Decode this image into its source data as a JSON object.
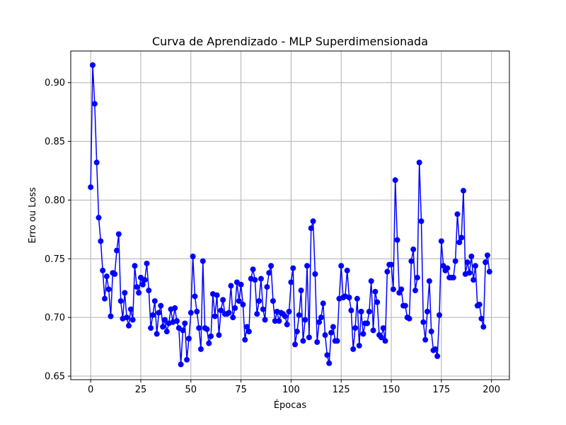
{
  "chart_data": {
    "type": "line",
    "title": "Curva de Aprendizado - MLP Superdimensionada",
    "xlabel": "Épocas",
    "ylabel": "Erro ou Loss",
    "xlim": [
      -9.95,
      208.95
    ],
    "ylim": [
      0.647,
      0.927
    ],
    "xticks": [
      0,
      25,
      50,
      75,
      100,
      125,
      150,
      175,
      200
    ],
    "yticks": [
      0.65,
      0.7,
      0.75,
      0.8,
      0.85,
      0.9
    ],
    "xtick_labels": [
      "0",
      "25",
      "50",
      "75",
      "100",
      "125",
      "150",
      "175",
      "200"
    ],
    "ytick_labels": [
      "0.65",
      "0.70",
      "0.75",
      "0.80",
      "0.85",
      "0.90"
    ],
    "grid": true,
    "series": [
      {
        "color": "#0000ff",
        "marker": "circle",
        "x": [
          0,
          1,
          2,
          3,
          4,
          5,
          6,
          7,
          8,
          9,
          10,
          11,
          12,
          13,
          14,
          15,
          16,
          17,
          18,
          19,
          20,
          21,
          22,
          23,
          24,
          25,
          26,
          27,
          28,
          29,
          30,
          31,
          32,
          33,
          34,
          35,
          36,
          37,
          38,
          39,
          40,
          41,
          42,
          43,
          44,
          45,
          46,
          47,
          48,
          49,
          50,
          51,
          52,
          53,
          54,
          55,
          56,
          57,
          58,
          59,
          60,
          61,
          62,
          63,
          64,
          65,
          66,
          67,
          68,
          69,
          70,
          71,
          72,
          73,
          74,
          75,
          76,
          77,
          78,
          79,
          80,
          81,
          82,
          83,
          84,
          85,
          86,
          87,
          88,
          89,
          90,
          91,
          92,
          93,
          94,
          95,
          96,
          97,
          98,
          99,
          100,
          101,
          102,
          103,
          104,
          105,
          106,
          107,
          108,
          109,
          110,
          111,
          112,
          113,
          114,
          115,
          116,
          117,
          118,
          119,
          120,
          121,
          122,
          123,
          124,
          125,
          126,
          127,
          128,
          129,
          130,
          131,
          132,
          133,
          134,
          135,
          136,
          137,
          138,
          139,
          140,
          141,
          142,
          143,
          144,
          145,
          146,
          147,
          148,
          149,
          150,
          151,
          152,
          153,
          154,
          155,
          156,
          157,
          158,
          159,
          160,
          161,
          162,
          163,
          164,
          165,
          166,
          167,
          168,
          169,
          170,
          171,
          172,
          173,
          174,
          175,
          176,
          177,
          178,
          179,
          180,
          181,
          182,
          183,
          184,
          185,
          186,
          187,
          188,
          189,
          190,
          191,
          192,
          193,
          194,
          195,
          196,
          197,
          198,
          199
        ],
        "y": [
          0.811,
          0.915,
          0.882,
          0.832,
          0.785,
          0.765,
          0.74,
          0.716,
          0.735,
          0.724,
          0.701,
          0.738,
          0.737,
          0.757,
          0.771,
          0.714,
          0.699,
          0.721,
          0.7,
          0.693,
          0.707,
          0.698,
          0.744,
          0.726,
          0.721,
          0.734,
          0.728,
          0.732,
          0.746,
          0.723,
          0.691,
          0.702,
          0.714,
          0.686,
          0.704,
          0.71,
          0.692,
          0.698,
          0.688,
          0.695,
          0.707,
          0.696,
          0.708,
          0.697,
          0.691,
          0.66,
          0.689,
          0.695,
          0.664,
          0.682,
          0.704,
          0.752,
          0.718,
          0.705,
          0.691,
          0.673,
          0.748,
          0.691,
          0.69,
          0.678,
          0.684,
          0.72,
          0.701,
          0.719,
          0.685,
          0.706,
          0.715,
          0.703,
          0.703,
          0.704,
          0.727,
          0.7,
          0.708,
          0.73,
          0.714,
          0.728,
          0.711,
          0.681,
          0.692,
          0.688,
          0.733,
          0.741,
          0.732,
          0.703,
          0.714,
          0.733,
          0.707,
          0.698,
          0.726,
          0.738,
          0.744,
          0.714,
          0.697,
          0.705,
          0.697,
          0.704,
          0.703,
          0.701,
          0.694,
          0.705,
          0.73,
          0.742,
          0.677,
          0.688,
          0.702,
          0.723,
          0.68,
          0.698,
          0.744,
          0.683,
          0.776,
          0.782,
          0.737,
          0.679,
          0.696,
          0.7,
          0.712,
          0.685,
          0.668,
          0.661,
          0.687,
          0.692,
          0.68,
          0.68,
          0.716,
          0.744,
          0.717,
          0.718,
          0.74,
          0.717,
          0.706,
          0.673,
          0.691,
          0.716,
          0.676,
          0.705,
          0.686,
          0.695,
          0.695,
          0.705,
          0.731,
          0.689,
          0.722,
          0.713,
          0.685,
          0.683,
          0.691,
          0.68,
          0.739,
          0.745,
          0.745,
          0.724,
          0.817,
          0.766,
          0.721,
          0.724,
          0.71,
          0.71,
          0.7,
          0.699,
          0.748,
          0.758,
          0.723,
          0.734,
          0.832,
          0.782,
          0.696,
          0.681,
          0.705,
          0.731,
          0.688,
          0.672,
          0.673,
          0.667,
          0.702,
          0.765,
          0.744,
          0.74,
          0.742,
          0.734,
          0.734,
          0.734,
          0.748,
          0.788,
          0.764,
          0.768,
          0.808,
          0.737,
          0.747,
          0.738,
          0.752,
          0.732,
          0.744,
          0.71,
          0.711,
          0.699,
          0.692,
          0.747,
          0.753,
          0.739
        ]
      }
    ]
  }
}
